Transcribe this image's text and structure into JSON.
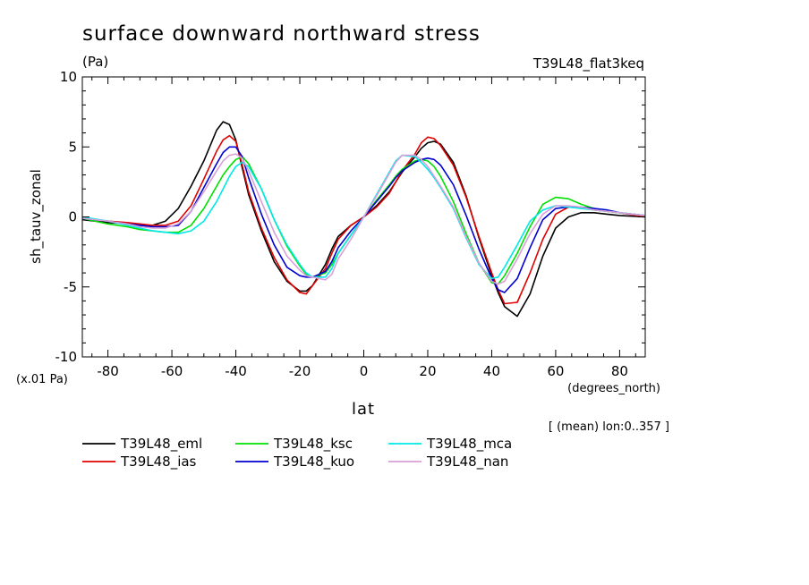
{
  "chart_data": {
    "type": "line",
    "title": "surface downward northward stress",
    "units_label": "(Pa)",
    "experiment_label": "T39L48_flat3keq",
    "ylabel": "sh_tauv_zonal",
    "y_scale_note": "(x.01 Pa)",
    "xlabel": "lat",
    "x_units": "(degrees_north)",
    "mean_note": "[ (mean) lon:0..357 ]",
    "xlim": [
      -88,
      88
    ],
    "ylim": [
      -10,
      10
    ],
    "x_ticks": [
      -80,
      -60,
      -40,
      -20,
      0,
      20,
      40,
      60,
      80
    ],
    "y_ticks": [
      -10,
      -5,
      0,
      5,
      10
    ],
    "x_tick_labels": [
      "-80",
      "-60",
      "-40",
      "-20",
      "0",
      "20",
      "40",
      "60",
      "80"
    ],
    "y_tick_labels": [
      "-10",
      "-5",
      "0",
      "5",
      "10"
    ],
    "x": [
      -88,
      -80,
      -74,
      -70,
      -66,
      -62,
      -58,
      -54,
      -50,
      -46,
      -44,
      -42,
      -40,
      -38,
      -36,
      -32,
      -28,
      -24,
      -20,
      -18,
      -16,
      -12,
      -10,
      -8,
      -4,
      0,
      4,
      8,
      10,
      12,
      16,
      18,
      20,
      22,
      24,
      28,
      32,
      36,
      40,
      42,
      44,
      48,
      52,
      56,
      60,
      64,
      68,
      72,
      76,
      80,
      88
    ],
    "series": [
      {
        "name": "T39L48_eml",
        "color": "#000000",
        "values": [
          -0.2,
          -0.4,
          -0.5,
          -0.6,
          -0.6,
          -0.3,
          0.6,
          2.2,
          4.0,
          6.2,
          6.8,
          6.6,
          5.5,
          3.5,
          1.6,
          -1.0,
          -3.2,
          -4.6,
          -5.3,
          -5.3,
          -4.9,
          -3.4,
          -2.3,
          -1.4,
          -0.6,
          0.0,
          0.8,
          1.8,
          2.5,
          3.2,
          4.3,
          4.9,
          5.3,
          5.4,
          5.2,
          3.9,
          1.5,
          -1.5,
          -4.2,
          -5.4,
          -6.4,
          -7.1,
          -5.5,
          -2.8,
          -0.8,
          0.0,
          0.3,
          0.3,
          0.2,
          0.1,
          0.0
        ]
      },
      {
        "name": "T39L48_ias",
        "color": "#e00000",
        "values": [
          -0.1,
          -0.3,
          -0.4,
          -0.5,
          -0.6,
          -0.6,
          -0.3,
          0.8,
          2.7,
          4.7,
          5.5,
          5.8,
          5.4,
          3.7,
          1.8,
          -0.8,
          -2.9,
          -4.5,
          -5.4,
          -5.5,
          -4.9,
          -3.7,
          -2.6,
          -1.6,
          -0.6,
          0.0,
          0.7,
          1.7,
          2.5,
          3.3,
          4.5,
          5.3,
          5.7,
          5.6,
          5.1,
          3.7,
          1.4,
          -1.4,
          -4.0,
          -5.2,
          -6.2,
          -6.1,
          -4.0,
          -1.6,
          0.2,
          0.7,
          0.7,
          0.5,
          0.4,
          0.3,
          0.0
        ]
      },
      {
        "name": "T39L48_ksc",
        "color": "#00e000",
        "values": [
          -0.1,
          -0.5,
          -0.7,
          -0.9,
          -1.0,
          -1.1,
          -1.1,
          -0.6,
          0.6,
          2.2,
          3.0,
          3.6,
          4.1,
          4.3,
          3.8,
          2.0,
          -0.2,
          -2.1,
          -3.5,
          -4.1,
          -4.3,
          -4.0,
          -3.4,
          -2.6,
          -1.3,
          0.0,
          1.2,
          2.3,
          2.9,
          3.4,
          4.0,
          4.1,
          4.0,
          3.6,
          2.9,
          1.1,
          -1.2,
          -3.3,
          -4.7,
          -4.8,
          -4.2,
          -2.6,
          -0.7,
          0.9,
          1.4,
          1.3,
          0.9,
          0.6,
          0.4,
          0.3,
          0.1
        ]
      },
      {
        "name": "T39L48_kuo",
        "color": "#0000d0",
        "values": [
          -0.1,
          -0.3,
          -0.5,
          -0.6,
          -0.7,
          -0.7,
          -0.6,
          0.4,
          2.1,
          3.8,
          4.6,
          5.0,
          5.0,
          4.3,
          2.8,
          0.2,
          -2.0,
          -3.6,
          -4.2,
          -4.3,
          -4.3,
          -3.9,
          -3.2,
          -2.2,
          -1.0,
          0.0,
          1.1,
          2.2,
          2.8,
          3.3,
          3.9,
          4.1,
          4.2,
          4.1,
          3.7,
          2.3,
          0.1,
          -2.3,
          -4.4,
          -5.2,
          -5.4,
          -4.4,
          -2.2,
          -0.2,
          0.6,
          0.7,
          0.7,
          0.6,
          0.5,
          0.3,
          0.1
        ]
      },
      {
        "name": "T39L48_mca",
        "color": "#00e8e8",
        "values": [
          0.0,
          -0.3,
          -0.6,
          -0.8,
          -1.0,
          -1.1,
          -1.2,
          -1.0,
          -0.3,
          1.1,
          2.0,
          2.9,
          3.6,
          3.9,
          3.6,
          2.0,
          -0.2,
          -2.0,
          -3.4,
          -4.0,
          -4.3,
          -4.3,
          -3.7,
          -2.6,
          -1.3,
          0.0,
          1.6,
          3.2,
          4.0,
          4.4,
          4.3,
          3.9,
          3.4,
          2.8,
          2.1,
          0.6,
          -1.5,
          -3.4,
          -4.4,
          -4.3,
          -3.6,
          -2.0,
          -0.3,
          0.5,
          0.8,
          0.7,
          0.6,
          0.5,
          0.4,
          0.3,
          0.1
        ]
      },
      {
        "name": "T39L48_nan",
        "color": "#d8a0d8",
        "values": [
          -0.1,
          -0.3,
          -0.5,
          -0.7,
          -0.8,
          -0.8,
          -0.5,
          0.4,
          1.8,
          3.3,
          4.0,
          4.4,
          4.5,
          4.2,
          3.3,
          1.1,
          -1.1,
          -2.8,
          -3.8,
          -4.2,
          -4.3,
          -4.5,
          -4.1,
          -3.0,
          -1.6,
          0.0,
          1.5,
          3.1,
          3.9,
          4.4,
          4.4,
          4.1,
          3.6,
          2.9,
          2.2,
          0.7,
          -1.4,
          -3.3,
          -4.6,
          -4.8,
          -4.6,
          -3.0,
          -1.2,
          0.2,
          0.8,
          0.8,
          0.7,
          0.5,
          0.4,
          0.3,
          0.1
        ]
      }
    ],
    "grid": false,
    "legend_position": "bottom-left"
  }
}
